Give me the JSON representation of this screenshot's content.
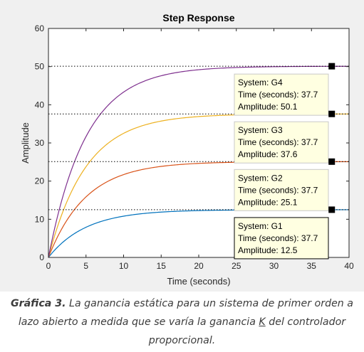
{
  "chart_data": {
    "type": "line",
    "title": "Step Response",
    "xlabel": "Time (seconds)",
    "ylabel": "Amplitude",
    "xlim": [
      0,
      40
    ],
    "ylim": [
      0,
      60
    ],
    "xticks": [
      0,
      5,
      10,
      15,
      20,
      25,
      30,
      35,
      40
    ],
    "yticks": [
      0,
      10,
      20,
      30,
      40,
      50,
      60
    ],
    "grid": false,
    "series": [
      {
        "name": "G1",
        "final_value": 12.5,
        "time_constant": 5,
        "color": "#0072bd"
      },
      {
        "name": "G2",
        "final_value": 25.1,
        "time_constant": 5,
        "color": "#d95319"
      },
      {
        "name": "G3",
        "final_value": 37.6,
        "time_constant": 5,
        "color": "#edb120"
      },
      {
        "name": "G4",
        "final_value": 50.1,
        "time_constant": 5,
        "color": "#7e2f8e"
      }
    ],
    "datatips": [
      {
        "system": "System: G4",
        "time": "Time (seconds): 37.7",
        "amplitude": "Amplitude: 50.1",
        "x": 37.7,
        "y": 50.1
      },
      {
        "system": "System: G3",
        "time": "Time (seconds): 37.7",
        "amplitude": "Amplitude: 37.6",
        "x": 37.7,
        "y": 37.6
      },
      {
        "system": "System: G2",
        "time": "Time (seconds): 37.7",
        "amplitude": "Amplitude: 25.1",
        "x": 37.7,
        "y": 25.1
      },
      {
        "system": "System: G1",
        "time": "Time (seconds): 37.7",
        "amplitude": "Amplitude: 12.5",
        "x": 37.7,
        "y": 12.5
      }
    ]
  },
  "caption": {
    "label": "Gráfica 3.",
    "text_before_k": " La ganancia estática para un sistema de primer orden a lazo abierto a medida que se varía la ganancia ",
    "k": "K",
    "text_after_k": " del controlador proporcional."
  }
}
